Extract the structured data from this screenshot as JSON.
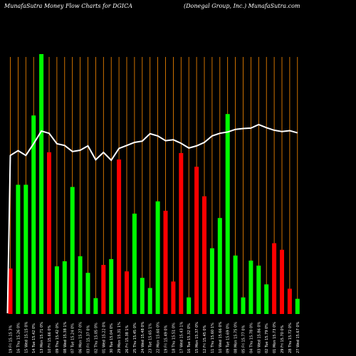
{
  "header": {
    "title": "MunafaSutra  Money Flow  Charts for DGICA",
    "subtitle": "(Donegal Group,  Inc.) MunafaSutra.com"
  },
  "chart_data": {
    "type": "bar",
    "title": "MunafaSutra  Money Flow  Charts for DGICA",
    "subtitle": "(Donegal Group,  Inc.) MunafaSutra.com",
    "categories": [
      "19 Fri 15.15 3%",
      "16 Thu 15.26 0%",
      "15 Wed 15.15 0%",
      "14 Tue 15.42 0%",
      "13 Mon 15.71 0%",
      "10 Fri 15.66 0%",
      "09 Thu 15.42 0%",
      "08 Wed 15.38 1%",
      "07 Tue 15.24 0%",
      "06 Mon 15.27 0%",
      "03 Fri 15.37 0%",
      "02 Thu 15.05 0%",
      "01 Wed 15.22 0%",
      "30 Tue 15.04 0%",
      "29 Mon 15.31 1%",
      "26 Fri 15.38 1%",
      "25 Thu 15.45 0%",
      "24 Wed 15.48 0%",
      "23 Tue 15.65 1%",
      "22 Mon 15.60 0%",
      "19 Fri 15.49 0%",
      "18 Thu 15.51 0%",
      "17 Wed 15.43 1%",
      "16 Tue 15.32 0%",
      "15 Mon 15.37 0%",
      "12 Fri 15.45 0%",
      "11 Thu 15.60 1%",
      "10 Wed 15.66 0%",
      "09 Tue 15.69 0%",
      "08 Mon 15.75 0%",
      "05 Fri 15.77 0%",
      "04 Thu 15.78 0%",
      "03 Wed 15.86 0%",
      "02 Tue 15.79 0%",
      "01 Mon 15.73 0%",
      "29 Fri 15.70 0%",
      "28 Thu 15.72 0%",
      "27 Wed 15.67 0%"
    ],
    "series": [
      {
        "values": [
          6.3,
          17.9,
          17.9,
          27.5,
          36.0,
          22.4,
          6.6,
          7.3,
          17.6,
          8.0,
          5.7,
          2.2,
          6.8,
          7.6,
          21.4,
          5.9,
          13.9,
          5.0,
          3.6,
          15.6,
          14.3,
          4.5,
          22.3,
          2.3,
          20.4,
          16.3,
          9.1,
          13.3,
          27.7,
          8.1,
          2.3,
          7.4,
          6.7,
          4.1,
          9.8,
          8.9,
          3.5,
          2.1
        ],
        "colors": [
          "#ff0000",
          "#00ff00",
          "#00ff00",
          "#00ff00",
          "#00ff00",
          "#ff0000",
          "#00ff00",
          "#00ff00",
          "#00ff00",
          "#00ff00",
          "#00ff00",
          "#00ff00",
          "#ff0000",
          "#00ff00",
          "#ff0000",
          "#ff0000",
          "#00ff00",
          "#00ff00",
          "#00ff00",
          "#00ff00",
          "#ff0000",
          "#ff0000",
          "#ff0000",
          "#00ff00",
          "#ff0000",
          "#ff0000",
          "#00ff00",
          "#00ff00",
          "#00ff00",
          "#00ff00",
          "#00ff00",
          "#00ff00",
          "#00ff00",
          "#00ff00",
          "#ff0000",
          "#ff0000",
          "#ff0000",
          "#00ff00"
        ]
      },
      {
        "values": [
          15.15,
          15.26,
          15.15,
          15.42,
          15.71,
          15.66,
          15.42,
          15.38,
          15.24,
          15.27,
          15.37,
          15.05,
          15.22,
          15.04,
          15.31,
          15.38,
          15.45,
          15.48,
          15.65,
          15.6,
          15.49,
          15.51,
          15.43,
          15.32,
          15.37,
          15.45,
          15.6,
          15.66,
          15.69,
          15.75,
          15.77,
          15.78,
          15.86,
          15.79,
          15.73,
          15.7,
          15.72,
          15.67
        ]
      }
    ],
    "ylim": [
      0,
      36
    ],
    "grid": true,
    "colors": {
      "background": "#000000",
      "grid": "#ff8c00",
      "up": "#00ff00",
      "down": "#ff0000",
      "line": "#ffffff",
      "text": "#ffffff"
    }
  }
}
